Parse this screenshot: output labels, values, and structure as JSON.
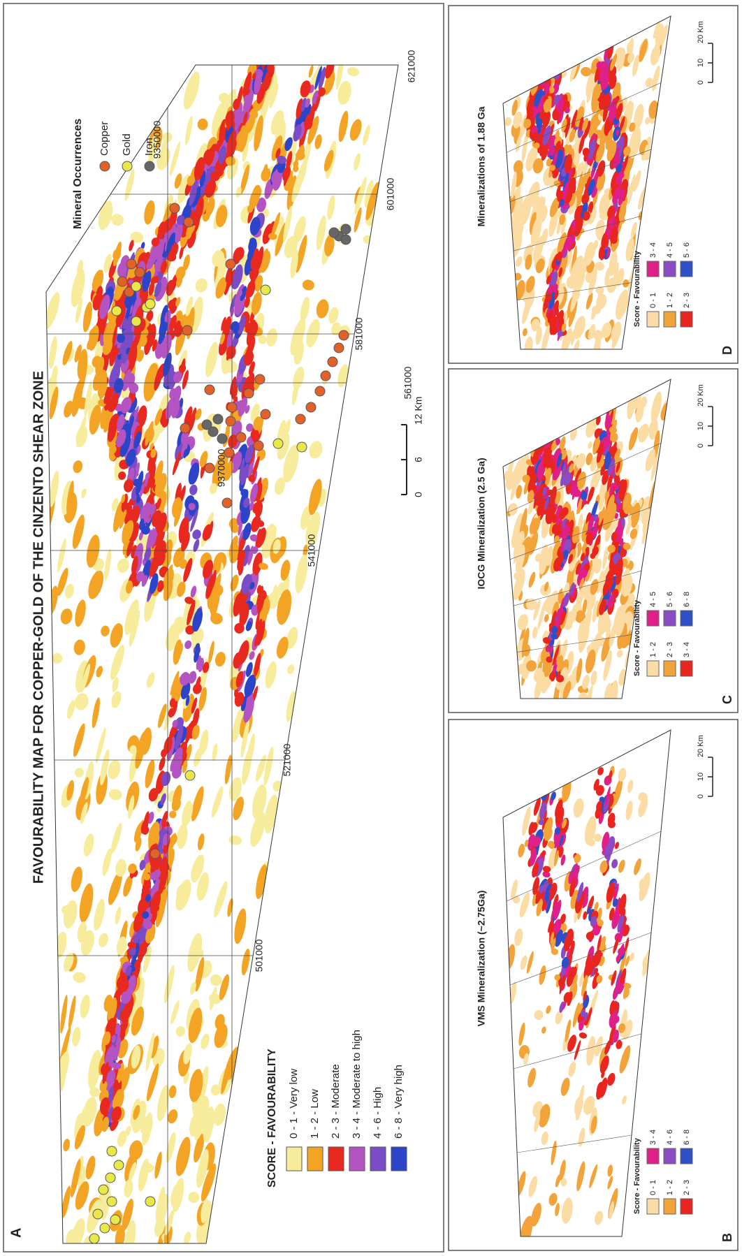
{
  "panel_a": {
    "label": "A",
    "title": "FAVOURABILITY MAP FOR COPPER-GOLD OF THE CINZENTO SHEAR ZONE",
    "legend": {
      "title": "SCORE - FAVOURABILITY",
      "items": [
        {
          "label": "0 - 1 - Very low",
          "color": "#f6ec9c"
        },
        {
          "label": "1 - 2 - Low",
          "color": "#f3a424"
        },
        {
          "label": "2 - 3 - Moderate",
          "color": "#e8291f"
        },
        {
          "label": "3 - 4 - Moderate to high",
          "color": "#b454c2"
        },
        {
          "label": "4 - 6 - High",
          "color": "#7a4cc6"
        },
        {
          "label": "6 - 8 - Very high",
          "color": "#2c44c8"
        }
      ]
    },
    "occurrences": {
      "title": "Mineral Occurrences",
      "items": [
        {
          "label": "Copper",
          "color": "#e2612b"
        },
        {
          "label": "Gold",
          "color": "#e9e84a"
        },
        {
          "label": "Iron",
          "color": "#666666"
        }
      ]
    },
    "eastings": [
      "501000",
      "521000",
      "541000",
      "561000",
      "581000",
      "601000",
      "621000"
    ],
    "northings": [
      "9370000",
      "9350000"
    ],
    "scale": [
      "0",
      "6",
      "12 Km"
    ]
  },
  "panels": [
    {
      "label": "B",
      "title": "VMS Mineralization (~2.75Ga)",
      "legend": {
        "title": "Score - Favourability",
        "items": [
          {
            "label": "0 - 1",
            "color": "#fbdca5"
          },
          {
            "label": "1 - 2",
            "color": "#f2a33a"
          },
          {
            "label": "2 - 3",
            "color": "#e8261f"
          },
          {
            "label": "3 - 4",
            "color": "#e0208a"
          },
          {
            "label": "4 - 6",
            "color": "#8a4cc4"
          },
          {
            "label": "6 - 8",
            "color": "#2f4fc8"
          }
        ]
      },
      "scale": [
        "0",
        "10",
        "20 Km"
      ]
    },
    {
      "label": "C",
      "title": "IOCG Mineralization (2.5 Ga)",
      "legend": {
        "title": "Score - Favourability",
        "items": [
          {
            "label": "1 - 2",
            "color": "#fbdca5"
          },
          {
            "label": "2 - 3",
            "color": "#f2a33a"
          },
          {
            "label": "3 - 4",
            "color": "#e8261f"
          },
          {
            "label": "4 - 5",
            "color": "#e0208a"
          },
          {
            "label": "5 - 6",
            "color": "#8a4cc4"
          },
          {
            "label": "6 - 8",
            "color": "#2f4fc8"
          }
        ]
      },
      "scale": [
        "0",
        "10",
        "20 Km"
      ]
    },
    {
      "label": "D",
      "title": "Mineralizations of 1.88 Ga",
      "legend": {
        "title": "Score - Favourability",
        "items": [
          {
            "label": "0 - 1",
            "color": "#fbdca5"
          },
          {
            "label": "1 - 2",
            "color": "#f2a33a"
          },
          {
            "label": "2 - 3",
            "color": "#e8261f"
          },
          {
            "label": "3 - 4",
            "color": "#e0208a"
          },
          {
            "label": "4 - 5",
            "color": "#8a4cc4"
          },
          {
            "label": "5 - 6",
            "color": "#2f4fc8"
          }
        ]
      },
      "scale": [
        "0",
        "10",
        "20 Km"
      ]
    }
  ]
}
